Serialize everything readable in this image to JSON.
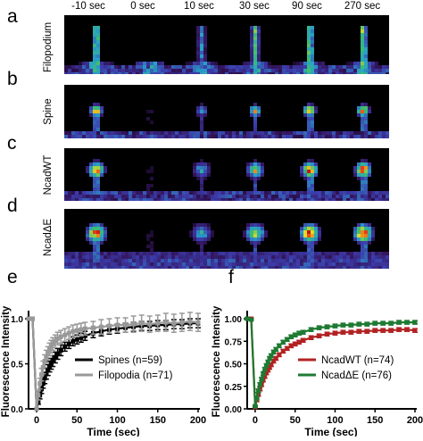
{
  "figure": {
    "time_labels": [
      "-10 sec",
      "0 sec",
      "10 sec",
      "30 sec",
      "90 sec",
      "270 sec"
    ],
    "rows": [
      {
        "panel": "a",
        "label": "Filopodium",
        "type": "filopodium"
      },
      {
        "panel": "b",
        "label": "Spine",
        "type": "spine"
      },
      {
        "panel": "c",
        "label": "NcadWT",
        "type": "ncad"
      },
      {
        "panel": "d",
        "label": "NcadΔE",
        "type": "ncadE"
      }
    ],
    "panels": {
      "e": "e",
      "f": "f"
    }
  },
  "chart_data": [
    {
      "panel": "e",
      "type": "line",
      "xlabel": "Time (sec)",
      "ylabel": "Fluorescence Intensity",
      "xlim": [
        -10,
        200
      ],
      "ylim": [
        0,
        1.05
      ],
      "xticks": [
        0,
        50,
        100,
        150,
        200
      ],
      "yticks": [
        0.0,
        0.5,
        1.0
      ],
      "ytick_labels": [
        "0.0",
        "0.5",
        "1.0"
      ],
      "legend_position": "center-right",
      "series": [
        {
          "name": "Spines (n=59)",
          "color": "#000000",
          "x": [
            -10,
            -5,
            0,
            2,
            4,
            6,
            8,
            10,
            12,
            14,
            16,
            18,
            20,
            23,
            26,
            30,
            35,
            40,
            45,
            50,
            55,
            60,
            70,
            80,
            90,
            100,
            110,
            120,
            130,
            140,
            150,
            160,
            170,
            180,
            190,
            200
          ],
          "y": [
            1.0,
            1.0,
            0.0,
            0.08,
            0.15,
            0.22,
            0.28,
            0.34,
            0.39,
            0.43,
            0.47,
            0.5,
            0.53,
            0.57,
            0.61,
            0.65,
            0.69,
            0.72,
            0.75,
            0.77,
            0.79,
            0.81,
            0.84,
            0.86,
            0.88,
            0.89,
            0.9,
            0.91,
            0.92,
            0.92,
            0.93,
            0.93,
            0.94,
            0.94,
            0.95,
            0.95
          ],
          "error": [
            0.0,
            0.0,
            0.0,
            0.03,
            0.04,
            0.05,
            0.05,
            0.06,
            0.06,
            0.06,
            0.06,
            0.06,
            0.06,
            0.06,
            0.06,
            0.06,
            0.05,
            0.05,
            0.05,
            0.05,
            0.05,
            0.05,
            0.05,
            0.05,
            0.05,
            0.05,
            0.05,
            0.05,
            0.05,
            0.05,
            0.05,
            0.05,
            0.05,
            0.05,
            0.05,
            0.05
          ]
        },
        {
          "name": "Filopodia (n=71)",
          "color": "#999999",
          "x": [
            -10,
            -5,
            0,
            2,
            4,
            6,
            8,
            10,
            12,
            14,
            16,
            18,
            20,
            23,
            26,
            30,
            35,
            40,
            45,
            50,
            55,
            60,
            70,
            80,
            90,
            100,
            110,
            120,
            130,
            140,
            150,
            160,
            170,
            180,
            190,
            200
          ],
          "y": [
            1.0,
            1.0,
            0.0,
            0.15,
            0.28,
            0.38,
            0.46,
            0.53,
            0.58,
            0.62,
            0.66,
            0.69,
            0.72,
            0.75,
            0.78,
            0.8,
            0.82,
            0.84,
            0.86,
            0.87,
            0.88,
            0.89,
            0.9,
            0.91,
            0.92,
            0.93,
            0.93,
            0.94,
            0.95,
            0.94,
            0.95,
            0.96,
            0.95,
            0.96,
            0.97,
            0.96
          ],
          "error": [
            0.0,
            0.0,
            0.0,
            0.05,
            0.06,
            0.07,
            0.07,
            0.07,
            0.07,
            0.07,
            0.07,
            0.07,
            0.07,
            0.07,
            0.07,
            0.07,
            0.07,
            0.07,
            0.07,
            0.07,
            0.07,
            0.07,
            0.07,
            0.08,
            0.08,
            0.08,
            0.08,
            0.09,
            0.09,
            0.09,
            0.09,
            0.1,
            0.1,
            0.1,
            0.1,
            0.1
          ]
        }
      ]
    },
    {
      "panel": "f",
      "type": "line",
      "xlabel": "Time (sec)",
      "ylabel": "Fluorescence Intensity",
      "xlim": [
        -10,
        200
      ],
      "ylim": [
        0,
        1.05
      ],
      "xticks": [
        0,
        50,
        100,
        150,
        200
      ],
      "yticks": [
        0.0,
        0.25,
        0.5,
        0.75,
        1.0
      ],
      "ytick_labels": [
        "0.00",
        "0.25",
        "0.50",
        "0.75",
        "1.00"
      ],
      "legend_position": "center-right",
      "series": [
        {
          "name": "NcadWT (n=74)",
          "color": "#b22222",
          "x": [
            -10,
            -5,
            0,
            2,
            4,
            6,
            8,
            10,
            12,
            14,
            16,
            18,
            20,
            23,
            26,
            30,
            35,
            40,
            45,
            50,
            55,
            60,
            70,
            80,
            90,
            100,
            110,
            120,
            130,
            140,
            150,
            160,
            170,
            180,
            190,
            200
          ],
          "y": [
            1.0,
            1.0,
            0.02,
            0.1,
            0.16,
            0.22,
            0.27,
            0.32,
            0.36,
            0.4,
            0.43,
            0.46,
            0.49,
            0.53,
            0.56,
            0.6,
            0.64,
            0.67,
            0.7,
            0.72,
            0.74,
            0.76,
            0.79,
            0.81,
            0.83,
            0.84,
            0.85,
            0.85,
            0.86,
            0.86,
            0.87,
            0.87,
            0.87,
            0.88,
            0.88,
            0.87
          ],
          "error": [
            0.01,
            0.01,
            0.01,
            0.02,
            0.02,
            0.02,
            0.02,
            0.02,
            0.02,
            0.02,
            0.02,
            0.02,
            0.02,
            0.02,
            0.02,
            0.02,
            0.02,
            0.02,
            0.02,
            0.02,
            0.02,
            0.02,
            0.02,
            0.02,
            0.02,
            0.02,
            0.02,
            0.02,
            0.02,
            0.02,
            0.02,
            0.02,
            0.02,
            0.02,
            0.02,
            0.02
          ]
        },
        {
          "name": "NcadΔE (n=76)",
          "color": "#1e7a32",
          "x": [
            -10,
            -5,
            0,
            2,
            4,
            6,
            8,
            10,
            12,
            14,
            16,
            18,
            20,
            23,
            26,
            30,
            35,
            40,
            45,
            50,
            55,
            60,
            70,
            80,
            90,
            100,
            110,
            120,
            130,
            140,
            150,
            160,
            170,
            180,
            190,
            200
          ],
          "y": [
            1.0,
            0.99,
            0.03,
            0.12,
            0.2,
            0.27,
            0.33,
            0.39,
            0.44,
            0.48,
            0.52,
            0.56,
            0.59,
            0.63,
            0.66,
            0.7,
            0.74,
            0.77,
            0.8,
            0.82,
            0.84,
            0.85,
            0.88,
            0.9,
            0.91,
            0.92,
            0.93,
            0.93,
            0.94,
            0.94,
            0.95,
            0.95,
            0.95,
            0.96,
            0.96,
            0.96
          ],
          "error": [
            0.01,
            0.01,
            0.01,
            0.02,
            0.02,
            0.02,
            0.02,
            0.02,
            0.02,
            0.02,
            0.02,
            0.02,
            0.02,
            0.02,
            0.02,
            0.02,
            0.02,
            0.02,
            0.02,
            0.02,
            0.02,
            0.02,
            0.02,
            0.02,
            0.02,
            0.02,
            0.02,
            0.02,
            0.02,
            0.02,
            0.02,
            0.02,
            0.02,
            0.02,
            0.02,
            0.02
          ]
        }
      ]
    }
  ]
}
